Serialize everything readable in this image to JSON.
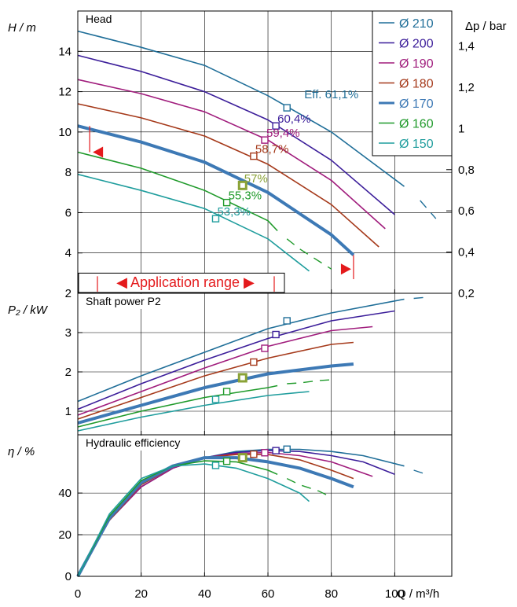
{
  "chart_data": {
    "type": "line",
    "title": "",
    "colors": {
      "Ø 210": "#1f6e98",
      "Ø 200": "#3c1e9a",
      "Ø 190": "#a01c7c",
      "Ø 180": "#a5391a",
      "Ø 170": "#3d79b5",
      "Ø 160": "#1f9a2a",
      "Ø 150": "#1f9d9d",
      "selected_marker": "#8aa236",
      "application_range": "#e41a1c"
    },
    "legend": {
      "position": "top-right",
      "items": [
        "Ø 210",
        "Ø 200",
        "Ø 190",
        "Ø 180",
        "Ø 170",
        "Ø 160",
        "Ø 150"
      ]
    },
    "selected_series": "Ø 170",
    "application_range": {
      "label": "◀ Application range ▶",
      "q_min": 4,
      "q_max": 87,
      "h_min_marker": 9.0,
      "h_max_marker": 3.2
    },
    "panels": [
      {
        "id": "head",
        "title": "Head",
        "ylabel": "H / m",
        "ylim": [
          2,
          16
        ],
        "yticks": [
          2,
          4,
          6,
          8,
          10,
          12,
          14
        ],
        "right_ylabel": "Δp / bar",
        "right_ylim": [
          0.2,
          1.57
        ],
        "right_yticks": [
          "0,2",
          "0,4",
          "0,6",
          "0,8",
          "1",
          "1,2",
          "1,4"
        ],
        "series": [
          {
            "name": "Ø 210",
            "x": [
              0,
              20,
              40,
              60,
              80,
              103
            ],
            "y": [
              15.0,
              14.2,
              13.3,
              11.8,
              10.0,
              7.3
            ],
            "ext_x": [
              108,
              113
            ],
            "ext_y": [
              6.6,
              5.7
            ]
          },
          {
            "name": "Ø 200",
            "x": [
              0,
              20,
              40,
              60,
              80,
              100
            ],
            "y": [
              13.8,
              13.0,
              12.0,
              10.6,
              8.6,
              5.9
            ]
          },
          {
            "name": "Ø 190",
            "x": [
              0,
              20,
              40,
              60,
              80,
              97
            ],
            "y": [
              12.6,
              11.9,
              11.0,
              9.6,
              7.6,
              5.2
            ]
          },
          {
            "name": "Ø 180",
            "x": [
              0,
              20,
              40,
              60,
              80,
              95
            ],
            "y": [
              11.4,
              10.7,
              9.8,
              8.4,
              6.4,
              4.3
            ]
          },
          {
            "name": "Ø 170",
            "x": [
              0,
              20,
              40,
              60,
              80,
              87
            ],
            "y": [
              10.3,
              9.5,
              8.5,
              7.0,
              4.9,
              3.9
            ]
          },
          {
            "name": "Ø 160",
            "x": [
              0,
              20,
              40,
              60,
              63
            ],
            "y": [
              9.0,
              8.2,
              7.1,
              5.6,
              5.1
            ],
            "ext_x": [
              66,
              70,
              76,
              80
            ],
            "ext_y": [
              4.7,
              4.2,
              3.6,
              3.2
            ]
          },
          {
            "name": "Ø 150",
            "x": [
              0,
              20,
              40,
              60,
              73
            ],
            "y": [
              7.9,
              7.1,
              6.2,
              4.7,
              3.1
            ],
            "ext_x": [],
            "ext_y": []
          }
        ],
        "markers": [
          {
            "series": "Ø 210",
            "x": 66,
            "y": 11.2,
            "label": "Eff. 61,1%"
          },
          {
            "series": "Ø 200",
            "x": 62.5,
            "y": 10.3,
            "label": "60,4%"
          },
          {
            "series": "Ø 190",
            "x": 59,
            "y": 9.6,
            "label": "59,4%"
          },
          {
            "series": "Ø 180",
            "x": 55.5,
            "y": 8.8,
            "label": "58,7%"
          },
          {
            "series": "Ø 170",
            "x": 52,
            "y": 7.35,
            "label": "57%"
          },
          {
            "series": "Ø 160",
            "x": 47,
            "y": 6.5,
            "label": "55,3%"
          },
          {
            "series": "Ø 150",
            "x": 43.5,
            "y": 5.7,
            "label": "53,3%"
          }
        ]
      },
      {
        "id": "power",
        "title": "Shaft power P2",
        "ylabel": "P₂ / kW",
        "ylim": [
          0.4,
          4.0
        ],
        "yticks": [
          1,
          2,
          3
        ],
        "series": [
          {
            "name": "Ø 210",
            "x": [
              0,
              20,
              40,
              60,
              80,
              103
            ],
            "y": [
              1.25,
              1.9,
              2.5,
              3.1,
              3.5,
              3.85
            ],
            "ext_x": [
              106,
              110
            ],
            "ext_y": [
              3.87,
              3.9
            ]
          },
          {
            "name": "Ø 200",
            "x": [
              0,
              20,
              40,
              60,
              80,
              100
            ],
            "y": [
              1.05,
              1.7,
              2.3,
              2.85,
              3.3,
              3.55
            ]
          },
          {
            "name": "Ø 190",
            "x": [
              0,
              20,
              40,
              60,
              80,
              93
            ],
            "y": [
              0.9,
              1.5,
              2.1,
              2.65,
              3.05,
              3.15
            ]
          },
          {
            "name": "Ø 180",
            "x": [
              0,
              20,
              40,
              60,
              80,
              87
            ],
            "y": [
              0.8,
              1.35,
              1.9,
              2.35,
              2.7,
              2.75
            ]
          },
          {
            "name": "Ø 170",
            "x": [
              0,
              20,
              40,
              60,
              80,
              87
            ],
            "y": [
              0.7,
              1.15,
              1.6,
              1.95,
              2.15,
              2.2
            ]
          },
          {
            "name": "Ø 160",
            "x": [
              0,
              20,
              40,
              60,
              63
            ],
            "y": [
              0.6,
              1.0,
              1.35,
              1.6,
              1.65
            ],
            "ext_x": [
              66,
              70,
              76,
              80
            ],
            "ext_y": [
              1.7,
              1.72,
              1.78,
              1.8
            ]
          },
          {
            "name": "Ø 150",
            "x": [
              0,
              20,
              40,
              60,
              73
            ],
            "y": [
              0.5,
              0.85,
              1.15,
              1.4,
              1.5
            ]
          }
        ],
        "markers": [
          {
            "series": "Ø 210",
            "x": 66,
            "y": 3.3
          },
          {
            "series": "Ø 200",
            "x": 62.5,
            "y": 2.95
          },
          {
            "series": "Ø 190",
            "x": 59,
            "y": 2.6
          },
          {
            "series": "Ø 180",
            "x": 55.5,
            "y": 2.25
          },
          {
            "series": "Ø 170",
            "x": 52,
            "y": 1.85
          },
          {
            "series": "Ø 160",
            "x": 47,
            "y": 1.5
          },
          {
            "series": "Ø 150",
            "x": 43.5,
            "y": 1.3
          }
        ]
      },
      {
        "id": "efficiency",
        "title": "Hydraulic efficiency",
        "ylabel": "η / %",
        "ylim": [
          0,
          68
        ],
        "yticks": [
          0,
          20,
          40
        ],
        "series": [
          {
            "name": "Ø 210",
            "x": [
              0,
              10,
              20,
              30,
              40,
              50,
              60,
              70,
              80,
              90,
              103
            ],
            "y": [
              0,
              27,
              43,
              52,
              57,
              60,
              61,
              61,
              60,
              58,
              53
            ],
            "ext_x": [
              106,
              110
            ],
            "ext_y": [
              51,
              49
            ]
          },
          {
            "name": "Ø 200",
            "x": [
              0,
              10,
              20,
              30,
              40,
              50,
              60,
              70,
              80,
              90,
              100
            ],
            "y": [
              0,
              27,
              43,
              52,
              57,
              59.5,
              60.5,
              60,
              58,
              55,
              49
            ]
          },
          {
            "name": "Ø 190",
            "x": [
              0,
              10,
              20,
              30,
              40,
              50,
              60,
              70,
              80,
              93
            ],
            "y": [
              0,
              27,
              43,
              52,
              57,
              59,
              59.5,
              58,
              55,
              48
            ]
          },
          {
            "name": "Ø 180",
            "x": [
              0,
              10,
              20,
              30,
              40,
              50,
              60,
              70,
              80,
              87
            ],
            "y": [
              0,
              27,
              44,
              52.5,
              57,
              58.5,
              58.5,
              56,
              51,
              47
            ]
          },
          {
            "name": "Ø 170",
            "x": [
              0,
              10,
              20,
              30,
              40,
              50,
              60,
              70,
              80,
              87
            ],
            "y": [
              0,
              28,
              45,
              53,
              57,
              57,
              55,
              52,
              47,
              43
            ]
          },
          {
            "name": "Ø 160",
            "x": [
              0,
              10,
              20,
              30,
              40,
              50,
              60,
              63
            ],
            "y": [
              0,
              29,
              46,
              53,
              55.5,
              55,
              51,
              49
            ],
            "ext_x": [
              66,
              70,
              76,
              80
            ],
            "ext_y": [
              47,
              44,
              41,
              38
            ]
          },
          {
            "name": "Ø 150",
            "x": [
              0,
              10,
              20,
              30,
              40,
              50,
              60,
              70,
              73
            ],
            "y": [
              0,
              30,
              47,
              53,
              54,
              52,
              47,
              40,
              36
            ]
          }
        ],
        "markers": [
          {
            "series": "Ø 210",
            "x": 66,
            "y": 61.1
          },
          {
            "series": "Ø 200",
            "x": 62.5,
            "y": 60.4
          },
          {
            "series": "Ø 190",
            "x": 59,
            "y": 59.4
          },
          {
            "series": "Ø 180",
            "x": 55.5,
            "y": 58.7
          },
          {
            "series": "Ø 170",
            "x": 52,
            "y": 57.0
          },
          {
            "series": "Ø 160",
            "x": 47,
            "y": 55.3
          },
          {
            "series": "Ø 150",
            "x": 43.5,
            "y": 53.3
          }
        ]
      }
    ],
    "xlabel": "Q / m³/h",
    "xlim": [
      0,
      118
    ],
    "xticks": [
      0,
      20,
      40,
      60,
      80,
      100
    ],
    "grid": true
  }
}
